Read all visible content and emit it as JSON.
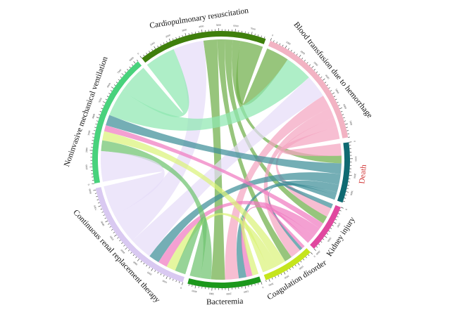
{
  "chart_data": {
    "type": "chord",
    "title": "",
    "nodes": [
      {
        "name": "Cardiopulmonary resuscitation",
        "color": "#3f7f0c",
        "label_color": "#111111"
      },
      {
        "name": "Blood transfusion due to hemorrhage",
        "color": "#f2b3c3",
        "label_color": "#111111"
      },
      {
        "name": "Death",
        "color": "#0f6a72",
        "label_color": "#d23a3a"
      },
      {
        "name": "Kidney injury",
        "color": "#e0489f",
        "label_color": "#111111"
      },
      {
        "name": "Coagulation disorder",
        "color": "#c5e51d",
        "label_color": "#111111"
      },
      {
        "name": "Bacteremia",
        "color": "#1c981c",
        "label_color": "#111111"
      },
      {
        "name": "Continuous renal replacement therapy",
        "color": "#d9c9f1",
        "label_color": "#111111"
      },
      {
        "name": "Noninvasive mechanical ventilation",
        "color": "#48d27c",
        "label_color": "#111111"
      }
    ],
    "chord_colors": [
      "#6fae4a",
      "#f4a5c0",
      "#3f8f98",
      "#f07cc0",
      "#dbf27a",
      "#6fc46f",
      "#e6dcf8",
      "#8fe8b2"
    ],
    "links": [
      {
        "source": 0,
        "target": 1,
        "value": 1500
      },
      {
        "source": 0,
        "target": 2,
        "value": 500
      },
      {
        "source": 0,
        "target": 3,
        "value": 500
      },
      {
        "source": 0,
        "target": 4,
        "value": 500
      },
      {
        "source": 0,
        "target": 5,
        "value": 900
      },
      {
        "source": 6,
        "target": 0,
        "value": 2000
      },
      {
        "source": 7,
        "target": 0,
        "value": 2000
      },
      {
        "source": 1,
        "target": 2,
        "value": 800
      },
      {
        "source": 1,
        "target": 3,
        "value": 600
      },
      {
        "source": 1,
        "target": 4,
        "value": 700
      },
      {
        "source": 1,
        "target": 5,
        "value": 900
      },
      {
        "source": 6,
        "target": 1,
        "value": 1500
      },
      {
        "source": 7,
        "target": 1,
        "value": 1800
      },
      {
        "source": 2,
        "target": 3,
        "value": 300
      },
      {
        "source": 2,
        "target": 4,
        "value": 200
      },
      {
        "source": 2,
        "target": 5,
        "value": 500
      },
      {
        "source": 2,
        "target": 6,
        "value": 700
      },
      {
        "source": 2,
        "target": 7,
        "value": 700
      },
      {
        "source": 3,
        "target": 4,
        "value": 200
      },
      {
        "source": 3,
        "target": 5,
        "value": 400
      },
      {
        "source": 3,
        "target": 6,
        "value": 600
      },
      {
        "source": 3,
        "target": 7,
        "value": 400
      },
      {
        "source": 4,
        "target": 5,
        "value": 400
      },
      {
        "source": 4,
        "target": 6,
        "value": 600
      },
      {
        "source": 4,
        "target": 7,
        "value": 600
      },
      {
        "source": 5,
        "target": 6,
        "value": 700
      },
      {
        "source": 5,
        "target": 7,
        "value": 700
      },
      {
        "source": 6,
        "target": 7,
        "value": 2000
      }
    ],
    "tick_major": 1000,
    "tick_minor": 200
  }
}
